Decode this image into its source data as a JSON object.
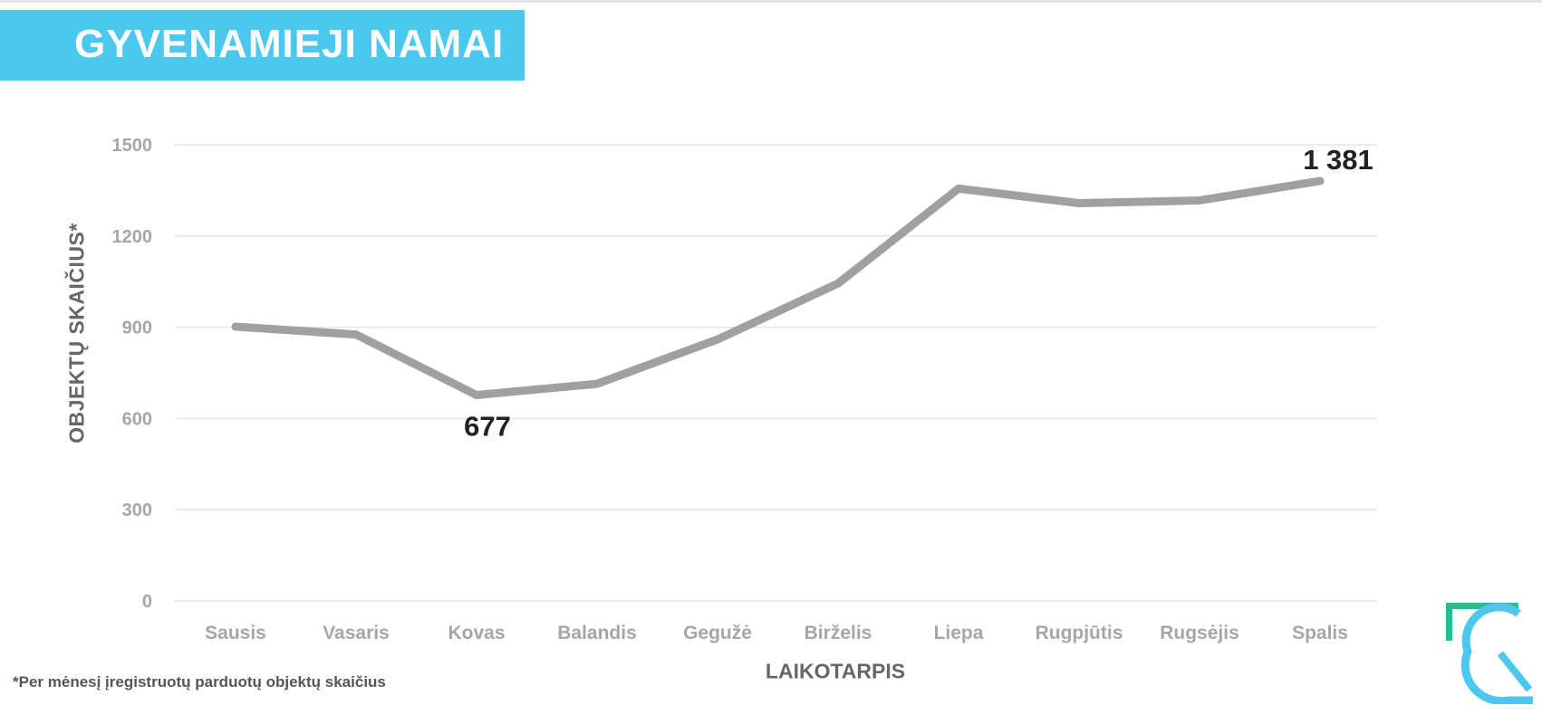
{
  "header": {
    "title": "GYVENAMIEJI NAMAI"
  },
  "footnote": "*Per mėnesį įregistruotų parduotų objektų skaičius",
  "chart_data": {
    "type": "line",
    "title": "GYVENAMIEJI NAMAI",
    "xlabel": "LAIKOTARPIS",
    "ylabel": "OBJEKTŲ SKAIČIUS*",
    "categories": [
      "Sausis",
      "Vasaris",
      "Kovas",
      "Balandis",
      "Gegužė",
      "Birželis",
      "Liepa",
      "Rugpjūtis",
      "Rugsėjis",
      "Spalis"
    ],
    "series": [
      {
        "values": [
          902,
          876,
          677,
          714,
          860,
          1044,
          1356,
          1308,
          1317,
          1381
        ]
      }
    ],
    "ylim": [
      0,
      1500
    ],
    "yticks": [
      0,
      300,
      600,
      900,
      1200,
      1500
    ],
    "grid": true,
    "annotations": [
      {
        "category": "Kovas",
        "value": 677,
        "text": "677"
      },
      {
        "category": "Spalis",
        "value": 1381,
        "text": "1 381"
      }
    ],
    "colors": {
      "line": "#a0a0a0",
      "grid": "#e6e6e6",
      "tick_label": "#a6a6a6",
      "annotation": "#222222"
    }
  },
  "brand": {
    "banner_color": "#4cc8ee",
    "logo_green": "#23c08e",
    "logo_blue": "#4cc8ee",
    "logo_icon": "rc-logo-icon"
  }
}
